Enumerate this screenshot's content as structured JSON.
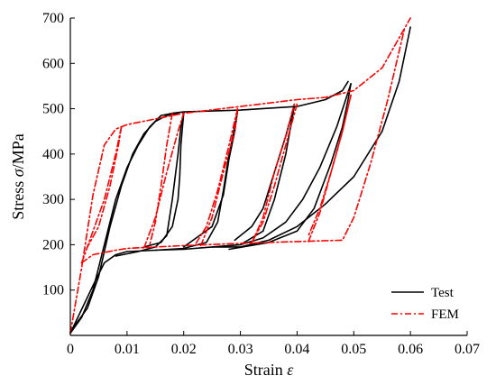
{
  "chart_data": {
    "type": "line",
    "xlabel_prefix": "Strain ",
    "xlabel_symbol": "ε",
    "ylabel_prefix": "Stress ",
    "ylabel_symbol": "σ",
    "ylabel_suffix": "/MPa",
    "xlim": [
      0,
      0.07
    ],
    "ylim": [
      0,
      700
    ],
    "xticks": [
      0,
      0.01,
      0.02,
      0.03,
      0.04,
      0.05,
      0.06,
      0.07
    ],
    "xtick_labels": [
      "0",
      "0.01",
      "0.02",
      "0.03",
      "0.04",
      "0.05",
      "0.06",
      "0.07"
    ],
    "yticks": [
      100,
      200,
      300,
      400,
      500,
      600,
      700
    ],
    "ytick_labels": [
      "100",
      "200",
      "300",
      "400",
      "500",
      "600",
      "700"
    ],
    "legend_position": "bottom-right",
    "series": [
      {
        "name": "Test",
        "color": "#000000",
        "dash": "solid",
        "segments": [
          [
            [
              0,
              5
            ],
            [
              0.002,
              40
            ],
            [
              0.004,
              100
            ],
            [
              0.006,
              200
            ],
            [
              0.008,
              300
            ],
            [
              0.01,
              370
            ],
            [
              0.012,
              420
            ],
            [
              0.014,
              460
            ],
            [
              0.016,
              485
            ],
            [
              0.018,
              490
            ],
            [
              0.02,
              493
            ],
            [
              0.03,
              497
            ],
            [
              0.04,
              505
            ],
            [
              0.045,
              520
            ],
            [
              0.048,
              540
            ],
            [
              0.049,
              560
            ]
          ],
          [
            [
              0,
              8
            ],
            [
              0.003,
              60
            ],
            [
              0.005,
              130
            ],
            [
              0.007,
              240
            ],
            [
              0.009,
              330
            ],
            [
              0.011,
              400
            ],
            [
              0.013,
              445
            ],
            [
              0.015,
              472
            ],
            [
              0.017,
              485
            ],
            [
              0.019,
              490
            ]
          ],
          [
            [
              0,
              5
            ],
            [
              0.004,
              110
            ],
            [
              0.006,
              160
            ],
            [
              0.008,
              178
            ],
            [
              0.01,
              185
            ],
            [
              0.015,
              188
            ],
            [
              0.02,
              190
            ],
            [
              0.025,
              195
            ],
            [
              0.03,
              195
            ],
            [
              0.035,
              210
            ],
            [
              0.04,
              240
            ],
            [
              0.045,
              290
            ],
            [
              0.05,
              350
            ],
            [
              0.055,
              450
            ],
            [
              0.058,
              560
            ],
            [
              0.06,
              680
            ]
          ],
          [
            [
              0.008,
              175
            ],
            [
              0.012,
              185
            ],
            [
              0.015,
              195
            ],
            [
              0.017,
              220
            ],
            [
              0.018,
              300
            ],
            [
              0.019,
              400
            ],
            [
              0.0195,
              460
            ],
            [
              0.02,
              490
            ]
          ],
          [
            [
              0.02,
              490
            ],
            [
              0.0195,
              420
            ],
            [
              0.0193,
              350
            ],
            [
              0.019,
              300
            ],
            [
              0.018,
              240
            ],
            [
              0.016,
              205
            ],
            [
              0.013,
              195
            ]
          ],
          [
            [
              0.015,
              188
            ],
            [
              0.02,
              192
            ],
            [
              0.024,
              205
            ],
            [
              0.026,
              250
            ],
            [
              0.027,
              320
            ],
            [
              0.028,
              400
            ],
            [
              0.029,
              460
            ],
            [
              0.0295,
              495
            ]
          ],
          [
            [
              0.0295,
              495
            ],
            [
              0.029,
              450
            ],
            [
              0.028,
              390
            ],
            [
              0.027,
              310
            ],
            [
              0.025,
              240
            ],
            [
              0.02,
              195
            ]
          ],
          [
            [
              0.025,
              195
            ],
            [
              0.03,
              200
            ],
            [
              0.034,
              230
            ],
            [
              0.036,
              300
            ],
            [
              0.038,
              400
            ],
            [
              0.039,
              470
            ],
            [
              0.0395,
              505
            ]
          ],
          [
            [
              0.0395,
              505
            ],
            [
              0.038,
              440
            ],
            [
              0.036,
              360
            ],
            [
              0.034,
              280
            ],
            [
              0.032,
              240
            ],
            [
              0.029,
              210
            ]
          ],
          [
            [
              0.028,
              190
            ],
            [
              0.035,
              205
            ],
            [
              0.04,
              230
            ],
            [
              0.043,
              280
            ],
            [
              0.046,
              380
            ],
            [
              0.048,
              460
            ],
            [
              0.049,
              520
            ],
            [
              0.0495,
              555
            ]
          ],
          [
            [
              0.0495,
              555
            ],
            [
              0.047,
              460
            ],
            [
              0.044,
              370
            ],
            [
              0.041,
              300
            ],
            [
              0.038,
              250
            ],
            [
              0.034,
              215
            ],
            [
              0.03,
              200
            ]
          ]
        ]
      },
      {
        "name": "FEM",
        "color": "#ff0000",
        "dash": "dashdot",
        "segments": [
          [
            [
              0,
              5
            ],
            [
              0.002,
              150
            ],
            [
              0.004,
              310
            ],
            [
              0.006,
              420
            ],
            [
              0.008,
              455
            ],
            [
              0.01,
              465
            ],
            [
              0.02,
              490
            ],
            [
              0.03,
              505
            ],
            [
              0.04,
              520
            ],
            [
              0.045,
              525
            ],
            [
              0.05,
              540
            ],
            [
              0.055,
              590
            ],
            [
              0.06,
              700
            ]
          ],
          [
            [
              0.002,
              160
            ],
            [
              0.004,
              178
            ],
            [
              0.008,
              188
            ],
            [
              0.01,
              192
            ],
            [
              0.02,
              198
            ],
            [
              0.03,
              203
            ],
            [
              0.04,
              207
            ],
            [
              0.048,
              210
            ],
            [
              0.05,
              260
            ],
            [
              0.053,
              380
            ],
            [
              0.056,
              520
            ],
            [
              0.059,
              680
            ]
          ],
          [
            [
              0.002,
              160
            ],
            [
              0.006,
              300
            ],
            [
              0.008,
              400
            ],
            [
              0.009,
              460
            ]
          ],
          [
            [
              0.009,
              460
            ],
            [
              0.0085,
              420
            ],
            [
              0.007,
              330
            ],
            [
              0.005,
              240
            ],
            [
              0.003,
              195
            ]
          ],
          [
            [
              0.013,
              193
            ],
            [
              0.015,
              260
            ],
            [
              0.017,
              360
            ],
            [
              0.019,
              450
            ],
            [
              0.02,
              490
            ]
          ],
          [
            [
              0.018,
              490
            ],
            [
              0.017,
              420
            ],
            [
              0.016,
              330
            ],
            [
              0.015,
              250
            ],
            [
              0.014,
              200
            ]
          ],
          [
            [
              0.023,
              198
            ],
            [
              0.025,
              260
            ],
            [
              0.027,
              360
            ],
            [
              0.029,
              450
            ],
            [
              0.0295,
              500
            ]
          ],
          [
            [
              0.0295,
              500
            ],
            [
              0.028,
              420
            ],
            [
              0.026,
              320
            ],
            [
              0.024,
              240
            ],
            [
              0.022,
              200
            ]
          ],
          [
            [
              0.032,
              203
            ],
            [
              0.034,
              260
            ],
            [
              0.036,
              360
            ],
            [
              0.038,
              440
            ],
            [
              0.0395,
              510
            ]
          ],
          [
            [
              0.04,
              510
            ],
            [
              0.038,
              420
            ],
            [
              0.036,
              330
            ],
            [
              0.034,
              250
            ],
            [
              0.032,
              205
            ]
          ],
          [
            [
              0.042,
              207
            ],
            [
              0.044,
              270
            ],
            [
              0.046,
              360
            ],
            [
              0.048,
              450
            ],
            [
              0.0495,
              530
            ]
          ],
          [
            [
              0.0495,
              530
            ],
            [
              0.048,
              450
            ],
            [
              0.046,
              360
            ],
            [
              0.044,
              280
            ],
            [
              0.042,
              220
            ]
          ]
        ]
      }
    ]
  }
}
